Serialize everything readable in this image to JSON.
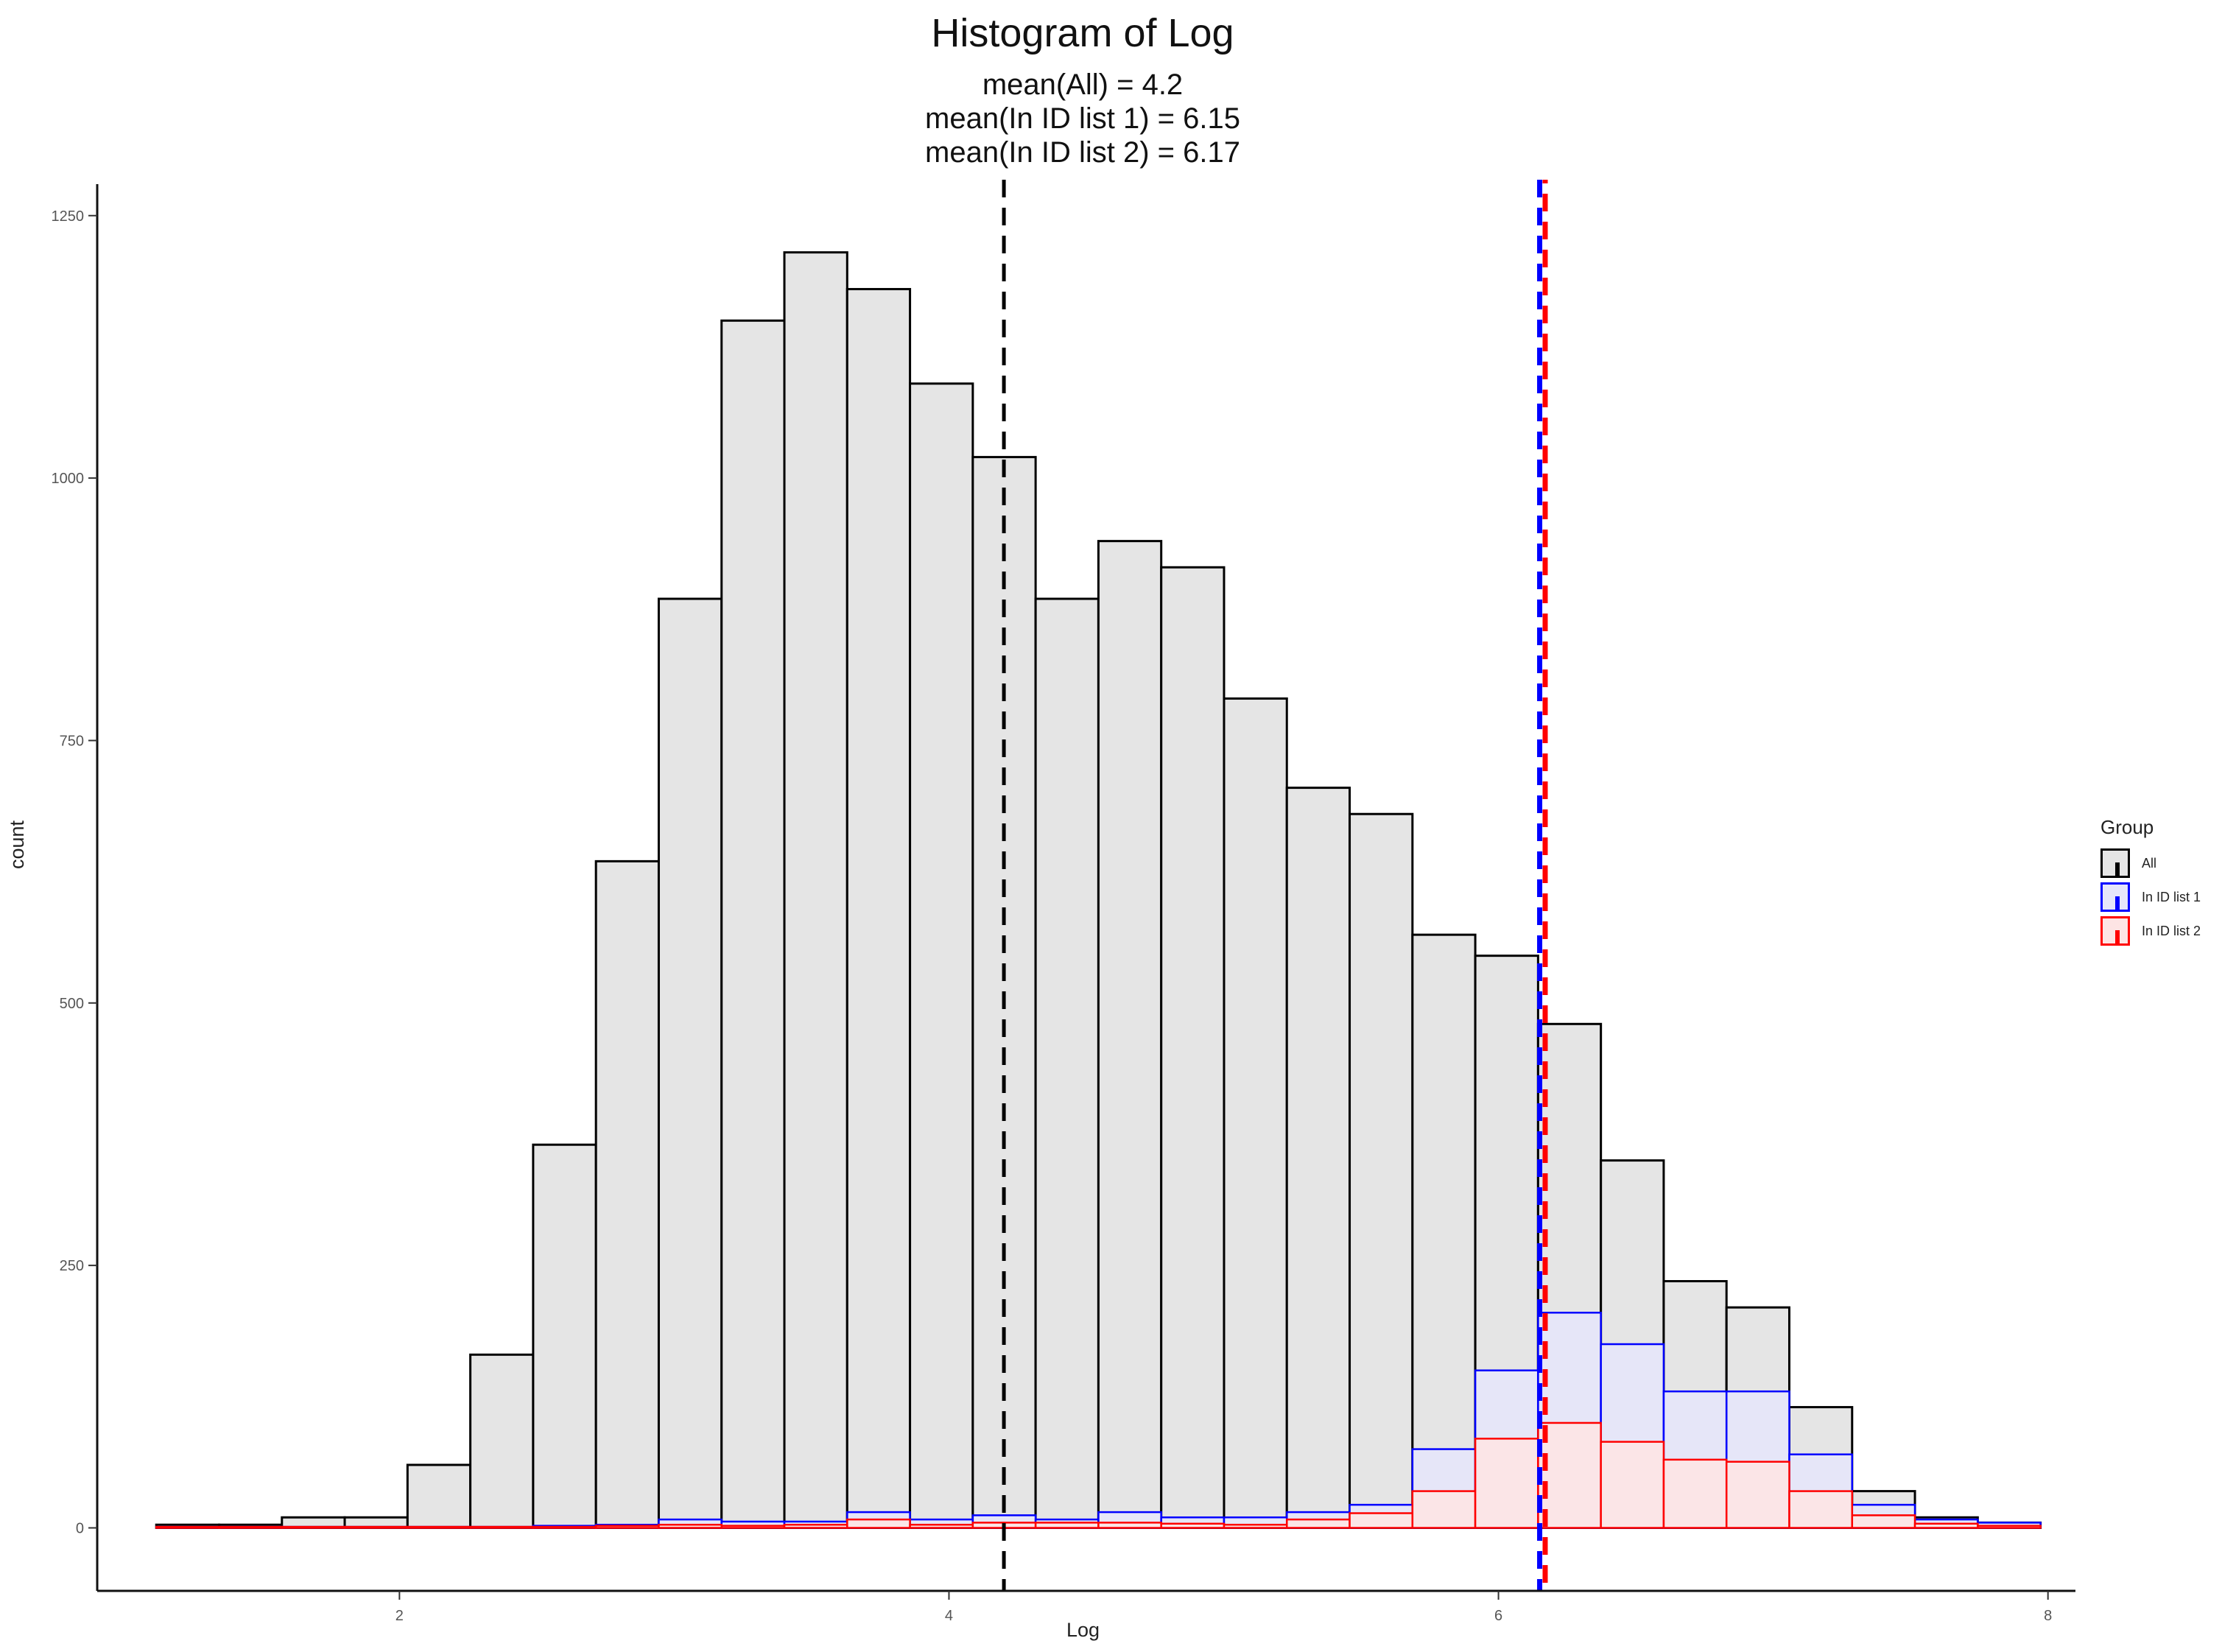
{
  "chart_data": {
    "type": "histogram",
    "title": "Histogram of Log",
    "subtitle_lines": [
      "mean(All) = 4.2",
      "mean(In ID list 1) = 6.15",
      "mean(In ID list 2) = 6.17"
    ],
    "xlabel": "Log",
    "ylabel": "count",
    "xlim": [
      0.9,
      8.1
    ],
    "ylim": [
      -60,
      1280
    ],
    "x_ticks": [
      2,
      4,
      6,
      8
    ],
    "y_ticks": [
      0,
      250,
      500,
      750,
      1000,
      1250
    ],
    "bin_width": 0.2286,
    "bin_starts": [
      1.115,
      1.3436,
      1.5722,
      1.8008,
      2.0294,
      2.258,
      2.4866,
      2.7152,
      2.9438,
      3.1724,
      3.401,
      3.6296,
      3.8582,
      4.0868,
      4.3154,
      4.544,
      4.7726,
      5.0012,
      5.2298,
      5.4584,
      5.687,
      5.9156,
      6.1442,
      6.3728,
      6.6014,
      6.83,
      7.0586,
      7.2872,
      7.5158,
      7.7444
    ],
    "series": [
      {
        "name": "All",
        "color": "#000000",
        "fill": "#e5e5e5",
        "values": [
          3,
          3,
          10,
          10,
          60,
          165,
          365,
          635,
          885,
          1150,
          1215,
          1180,
          1090,
          1020,
          885,
          940,
          915,
          790,
          705,
          680,
          565,
          545,
          480,
          350,
          235,
          210,
          115,
          35,
          10,
          5
        ]
      },
      {
        "name": "In ID list 1",
        "color": "#0000ff",
        "fill": "#e6e6fa",
        "values": [
          1,
          1,
          1,
          1,
          1,
          1,
          2,
          3,
          8,
          6,
          6,
          15,
          8,
          12,
          8,
          15,
          10,
          10,
          15,
          22,
          75,
          150,
          205,
          175,
          130,
          130,
          70,
          22,
          8,
          5
        ]
      },
      {
        "name": "In ID list 2",
        "color": "#ff0000",
        "fill": "#fde4e4",
        "values": [
          1,
          1,
          1,
          1,
          1,
          1,
          1,
          2,
          3,
          2,
          3,
          8,
          3,
          5,
          5,
          5,
          4,
          3,
          8,
          14,
          35,
          85,
          100,
          82,
          65,
          63,
          35,
          12,
          4,
          2
        ]
      }
    ],
    "mean_lines": [
      {
        "group": "All",
        "x": 4.2,
        "color": "#000000"
      },
      {
        "group": "In ID list 1",
        "x": 6.15,
        "color": "#0000ff"
      },
      {
        "group": "In ID list 2",
        "x": 6.17,
        "color": "#ff0000"
      }
    ],
    "legend": {
      "title": "Group",
      "position": "right",
      "items": [
        "All",
        "In ID list 1",
        "In ID list 2"
      ]
    }
  },
  "colors": {
    "all": "#000000",
    "list1": "#0000ff",
    "list2": "#ff0000",
    "all_fill": "#e5e5e5",
    "list1_fill": "#e6e6fa",
    "list2_fill": "#fde4e4"
  }
}
